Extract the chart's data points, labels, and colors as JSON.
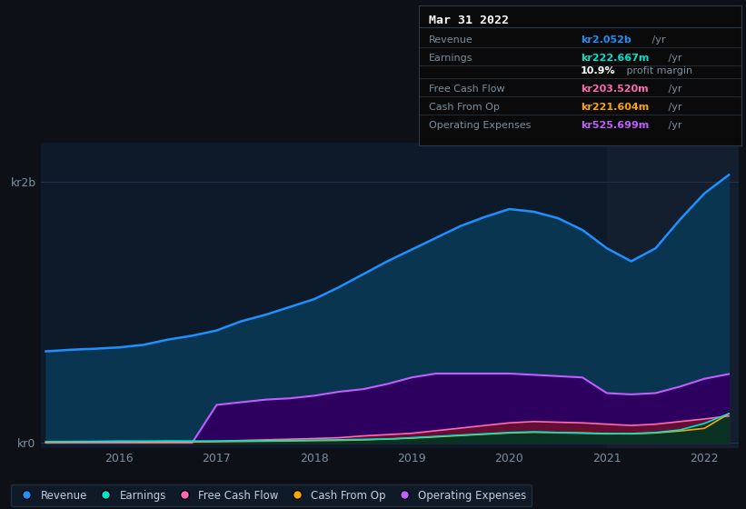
{
  "bg_color": "#0d1117",
  "plot_bg_color": "#0d1a2a",
  "grid_color": "#253545",
  "highlight_bg": "#131f2e",
  "title_box": {
    "date": "Mar 31 2022",
    "box_bg": "#0a0a0a",
    "rows": [
      {
        "label": "Revenue",
        "value": "kr2.052b",
        "value_color": "#1e90ff",
        "suffix": " /yr"
      },
      {
        "label": "Earnings",
        "value": "kr222.667m",
        "value_color": "#00e5cc",
        "suffix": " /yr"
      },
      {
        "label": "",
        "value": "10.9%",
        "value_color": "#ffffff",
        "suffix": " profit margin"
      },
      {
        "label": "Free Cash Flow",
        "value": "kr203.520m",
        "value_color": "#ff69b4",
        "suffix": " /yr"
      },
      {
        "label": "Cash From Op",
        "value": "kr221.604m",
        "value_color": "#ffa500",
        "suffix": " /yr"
      },
      {
        "label": "Operating Expenses",
        "value": "kr525.699m",
        "value_color": "#bf5fff",
        "suffix": " /yr"
      }
    ]
  },
  "ylabel_top": "kr2b",
  "ylabel_bottom": "kr0",
  "years": [
    2015.25,
    2015.5,
    2015.75,
    2016.0,
    2016.25,
    2016.5,
    2016.75,
    2017.0,
    2017.25,
    2017.5,
    2017.75,
    2018.0,
    2018.25,
    2018.5,
    2018.75,
    2019.0,
    2019.25,
    2019.5,
    2019.75,
    2020.0,
    2020.25,
    2020.5,
    2020.75,
    2021.0,
    2021.25,
    2021.5,
    2021.75,
    2022.0,
    2022.25
  ],
  "revenue": [
    700,
    712,
    720,
    730,
    750,
    790,
    820,
    860,
    930,
    980,
    1040,
    1100,
    1190,
    1290,
    1390,
    1480,
    1570,
    1660,
    1730,
    1790,
    1770,
    1720,
    1630,
    1490,
    1390,
    1490,
    1710,
    1910,
    2052
  ],
  "earnings": [
    8,
    9,
    10,
    11,
    12,
    14,
    13,
    12,
    14,
    16,
    18,
    20,
    22,
    25,
    28,
    38,
    48,
    58,
    68,
    78,
    83,
    78,
    73,
    68,
    70,
    78,
    98,
    148,
    223
  ],
  "fcf": [
    5,
    7,
    9,
    11,
    9,
    7,
    8,
    12,
    17,
    22,
    27,
    32,
    38,
    52,
    62,
    72,
    92,
    112,
    132,
    152,
    162,
    157,
    152,
    142,
    132,
    142,
    162,
    182,
    204
  ],
  "cashfromop": [
    3,
    4,
    5,
    6,
    5,
    6,
    7,
    8,
    10,
    12,
    14,
    16,
    18,
    22,
    28,
    35,
    45,
    55,
    65,
    75,
    80,
    78,
    75,
    70,
    68,
    75,
    90,
    110,
    222
  ],
  "opex": [
    0,
    0,
    0,
    0,
    0,
    0,
    0,
    290,
    310,
    330,
    340,
    360,
    390,
    410,
    450,
    500,
    530,
    530,
    530,
    530,
    520,
    510,
    500,
    380,
    370,
    380,
    430,
    490,
    526
  ],
  "highlight_x": 2021.0,
  "xmin": 2015.2,
  "xmax": 2022.35,
  "ymin": -0.04,
  "ymax": 2.3,
  "legend": [
    {
      "label": "Revenue",
      "color": "#1e90ff"
    },
    {
      "label": "Earnings",
      "color": "#00e5cc"
    },
    {
      "label": "Free Cash Flow",
      "color": "#ff69b4"
    },
    {
      "label": "Cash From Op",
      "color": "#ffa500"
    },
    {
      "label": "Operating Expenses",
      "color": "#bf5fff"
    }
  ]
}
